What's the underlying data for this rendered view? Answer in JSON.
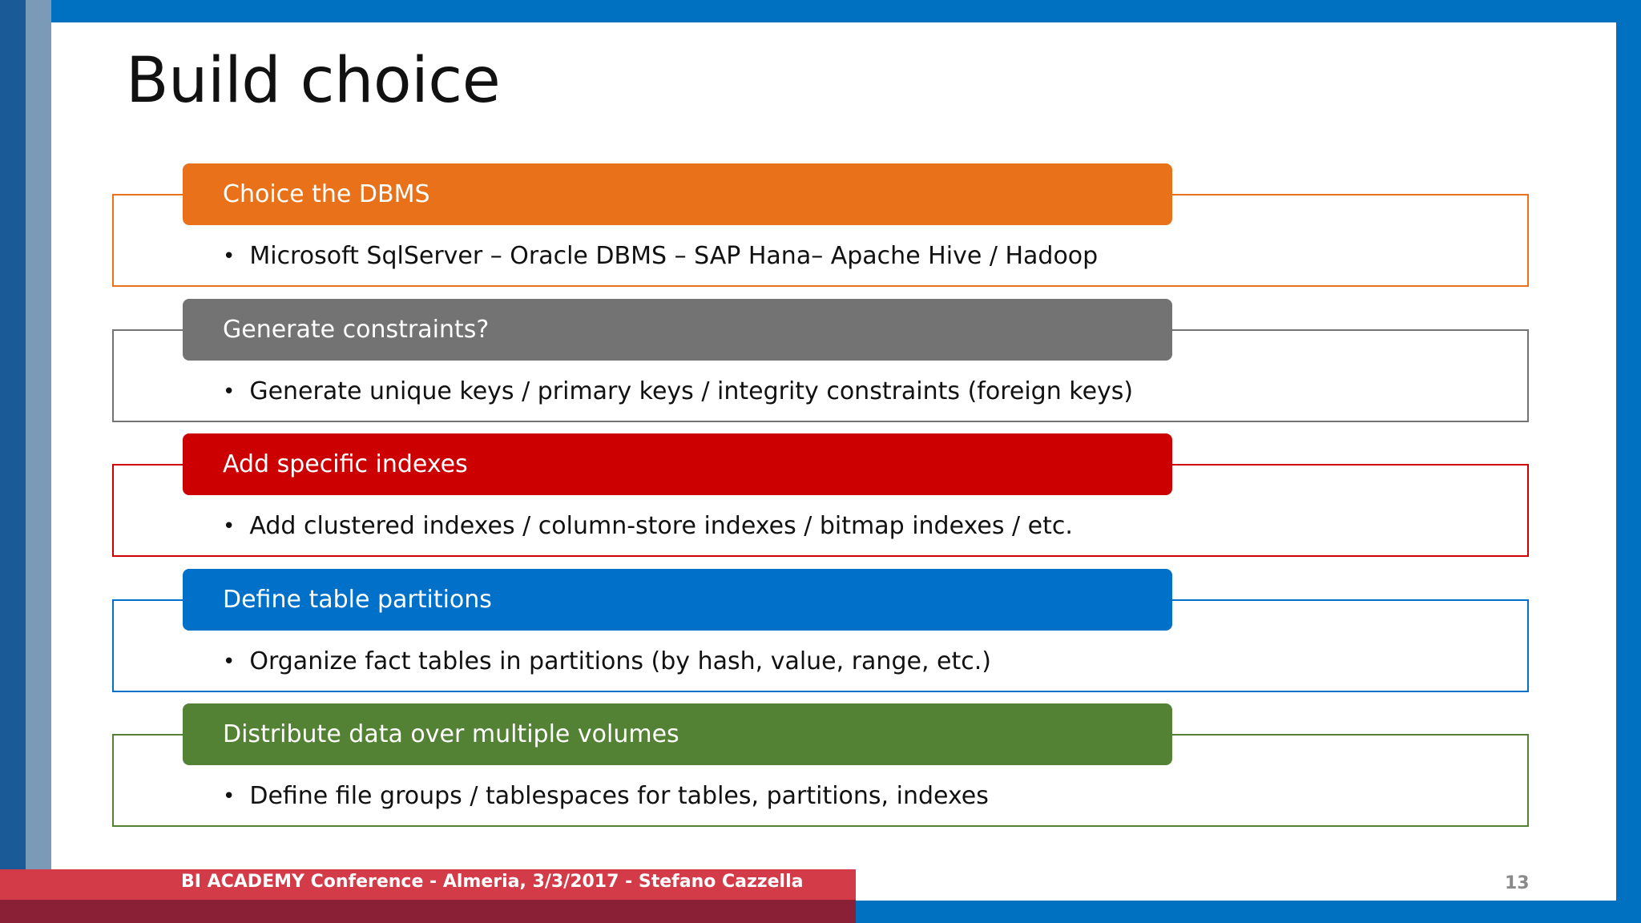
{
  "slide": {
    "title": "Build choice",
    "items": [
      {
        "header": "Choice the DBMS",
        "body": "Microsoft SqlServer – Oracle DBMS – SAP Hana– Apache Hive / Hadoop",
        "color": "#e8711a"
      },
      {
        "header": "Generate constraints?",
        "body": "Generate unique keys / primary keys / integrity constraints (foreign keys)",
        "color": "#737373"
      },
      {
        "header": "Add specific indexes",
        "body": "Add clustered indexes / column-store indexes / bitmap indexes / etc.",
        "color": "#cc0000"
      },
      {
        "header": "Define table partitions",
        "body": "Organize fact tables in partitions (by hash, value, range, etc.)",
        "color": "#0070c8"
      },
      {
        "header": "Distribute data over multiple volumes",
        "body": "Define file groups / tablespaces for tables, partitions, indexes",
        "color": "#548235"
      }
    ]
  },
  "footer": {
    "text": "BI ACADEMY Conference - Almeria, 3/3/2017 - Stefano Cazzella",
    "page_number": "13"
  }
}
